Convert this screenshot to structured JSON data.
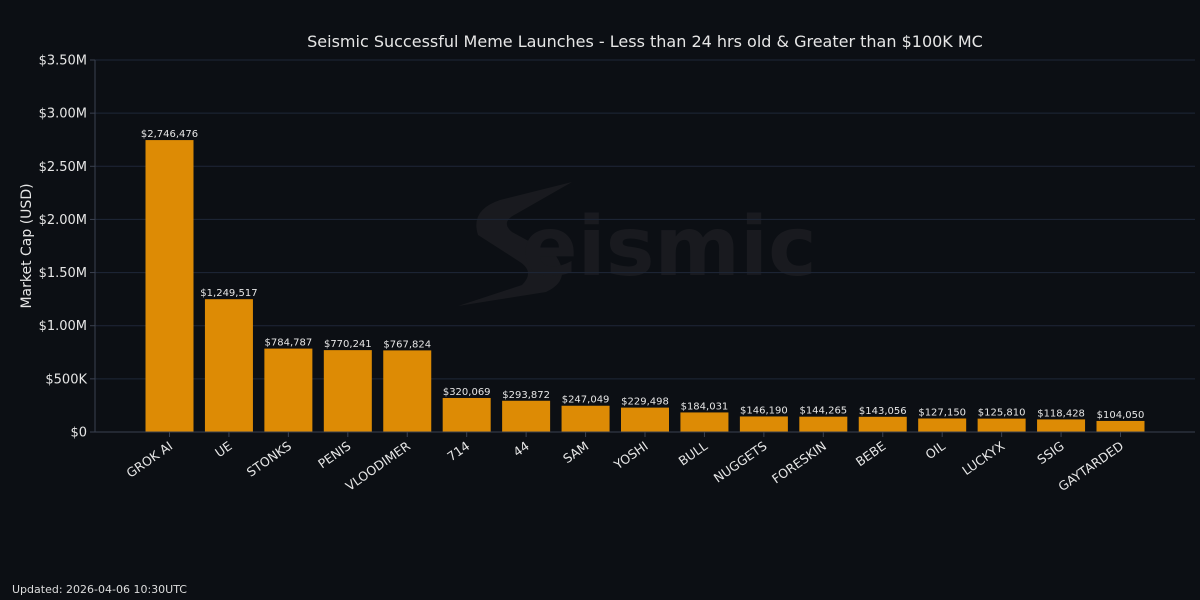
{
  "chart_data": {
    "type": "bar",
    "title": "Seismic Successful Meme Launches - Less than 24 hrs old & Greater than $100K MC",
    "xlabel": "",
    "ylabel": "Market Cap (USD)",
    "ylim": [
      0,
      3500000
    ],
    "yticks": [
      0,
      500000,
      1000000,
      1500000,
      2000000,
      2500000,
      3000000,
      3500000
    ],
    "ytick_labels": [
      "$0",
      "$500K",
      "$1.00M",
      "$1.50M",
      "$2.00M",
      "$2.50M",
      "$3.00M",
      "$3.50M"
    ],
    "grid": true,
    "categories": [
      "GROK AI",
      "UE",
      "STONKS",
      "PENIS",
      "VLOODIMER",
      "714",
      "44",
      "SAM",
      "YOSHI",
      "BULL",
      "NUGGETS",
      "FORESKIN",
      "BEBE",
      "OIL",
      "LUCKYX",
      "SSIG",
      "GAYTARDED"
    ],
    "values": [
      2746476,
      1249517,
      784787,
      770241,
      767824,
      320069,
      293872,
      247049,
      229498,
      184031,
      146190,
      144265,
      143056,
      127150,
      125810,
      118428,
      104050
    ],
    "value_labels": [
      "$2,746,476",
      "$1,249,517",
      "$784,787",
      "$770,241",
      "$767,824",
      "$320,069",
      "$293,872",
      "$247,049",
      "$229,498",
      "$184,031",
      "$146,190",
      "$144,265",
      "$143,056",
      "$127,150",
      "$125,810",
      "$118,428",
      "$104,050"
    ],
    "bar_color": "#dd8b05",
    "watermark": "Seismic"
  },
  "colors": {
    "background": "#0c0f14",
    "grid": "#1e2738",
    "axis": "#3a4150",
    "text": "#e6e6e6",
    "bar": "#dd8b05"
  },
  "footer": {
    "updated": "Updated: 2026-04-06 10:30UTC"
  }
}
